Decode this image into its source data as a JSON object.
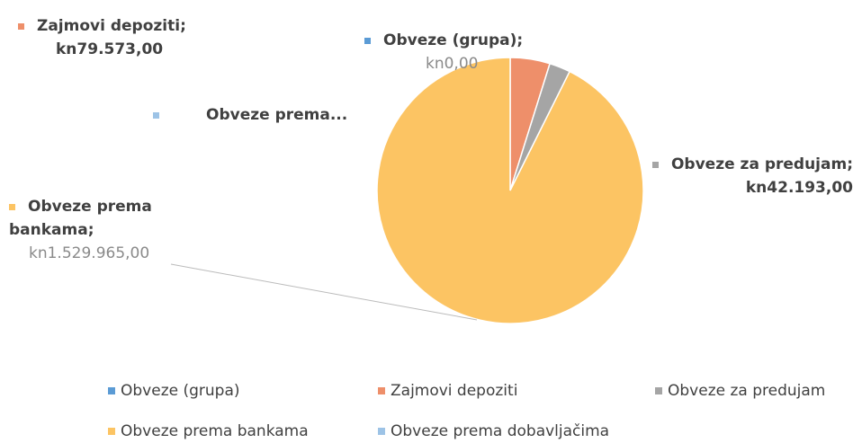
{
  "chart_data": {
    "type": "pie",
    "categories": [
      "Obveze (grupa)",
      "Zajmovi depoziti",
      "Obveze za predujam",
      "Obveze prema bankama",
      "Obveze prema dobavljačima"
    ],
    "values": [
      0,
      79573,
      42193,
      1529965,
      null
    ],
    "value_labels": [
      "kn0,00",
      "kn79.573,00",
      "kn42.193,00",
      "kn1.529.965,00",
      null
    ],
    "label_names": [
      "Obveze (grupa);",
      "Zajmovi depoziti;",
      "Obveze za predujam;",
      "Obveze prema bankama;",
      "Obveze prema..."
    ],
    "colors": [
      "#5b9bd5",
      "#ee8f6a",
      "#a5a5a5",
      "#fcc463",
      "#9dc3e6"
    ],
    "legend": "bottom"
  }
}
